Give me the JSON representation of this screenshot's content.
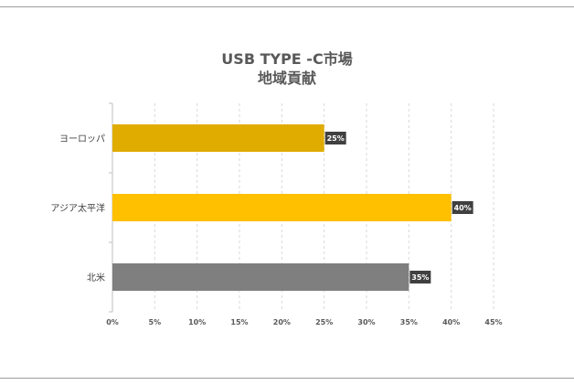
{
  "chart_data": {
    "type": "bar",
    "orientation": "horizontal",
    "title_lines": [
      "USB TYPE -C市場",
      "地域貢献"
    ],
    "categories": [
      "ヨーロッパ",
      "アジア太平洋",
      "北米"
    ],
    "values": [
      0.25,
      0.4,
      0.35
    ],
    "data_labels": [
      "25%",
      "40%",
      "35%"
    ],
    "bar_colors": [
      "#E0AC00",
      "#FFC000",
      "#7F7F7F"
    ],
    "x_ticks": [
      "0%",
      "5%",
      "10%",
      "15%",
      "20%",
      "25%",
      "30%",
      "35%",
      "40%",
      "45%"
    ],
    "x_tick_values": [
      0,
      0.05,
      0.1,
      0.15,
      0.2,
      0.25,
      0.3,
      0.35,
      0.4,
      0.45
    ],
    "xlim": [
      0,
      0.45
    ],
    "grid": "vertical-dashed",
    "legend": "none",
    "xlabel": "",
    "ylabel": ""
  }
}
